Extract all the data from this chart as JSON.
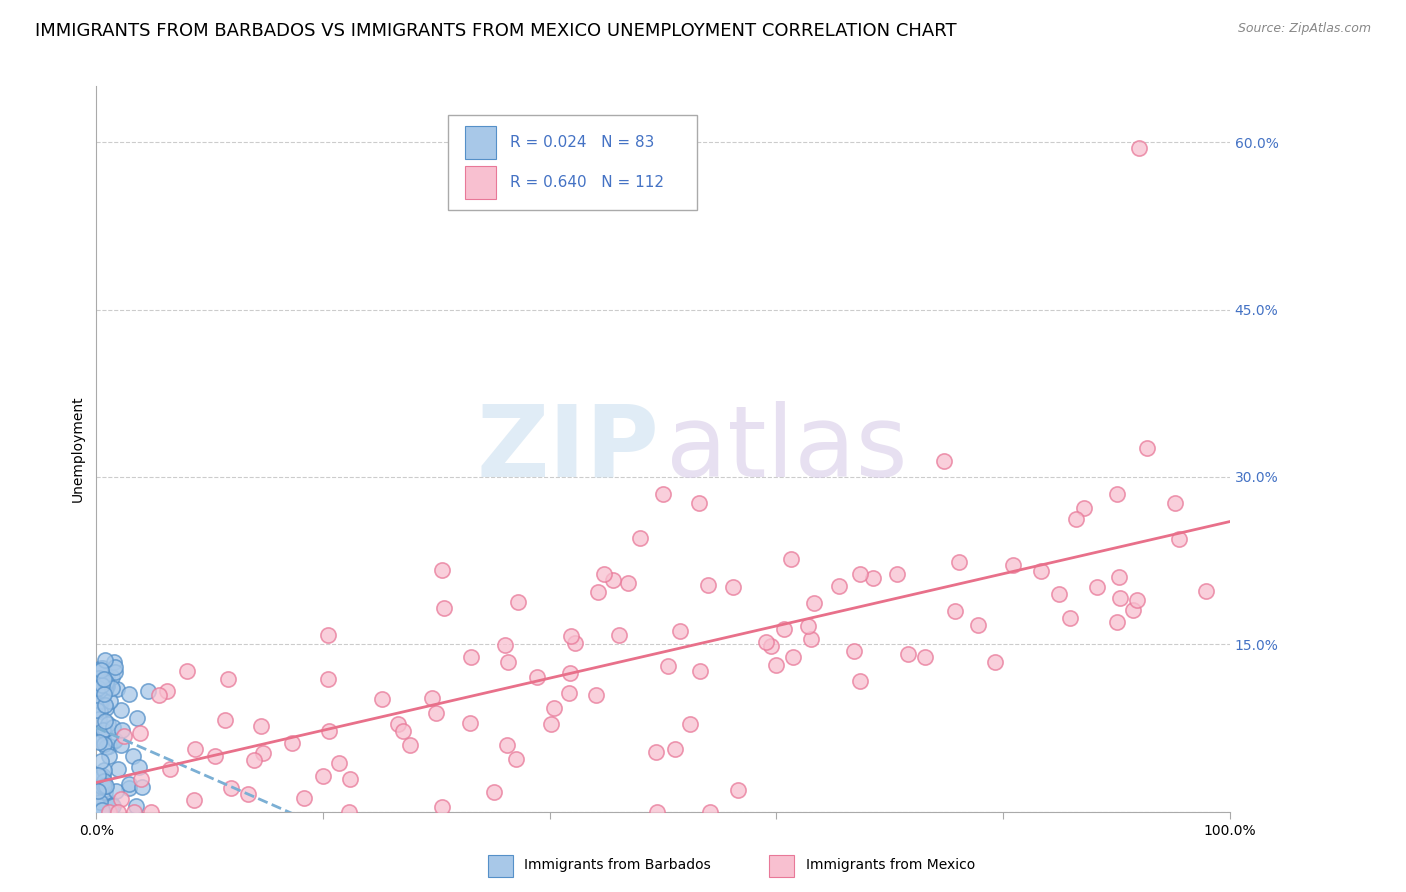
{
  "title": "IMMIGRANTS FROM BARBADOS VS IMMIGRANTS FROM MEXICO UNEMPLOYMENT CORRELATION CHART",
  "source": "Source: ZipAtlas.com",
  "ylabel": "Unemployment",
  "xlim": [
    0,
    1.0
  ],
  "ylim": [
    0,
    0.65
  ],
  "yticks": [
    0.0,
    0.15,
    0.3,
    0.45,
    0.6
  ],
  "ytick_labels": [
    "",
    "15.0%",
    "30.0%",
    "45.0%",
    "60.0%"
  ],
  "xticks": [
    0.0,
    0.2,
    0.4,
    0.6,
    0.8,
    1.0
  ],
  "xtick_labels": [
    "0.0%",
    "",
    "",
    "",
    "",
    "100.0%"
  ],
  "series_barbados": {
    "label": "Immigrants from Barbados",
    "color": "#a8c8e8",
    "edge_color": "#5590c8",
    "R": 0.024,
    "N": 83,
    "line_style": "--",
    "line_color": "#7bafd4"
  },
  "series_mexico": {
    "label": "Immigrants from Mexico",
    "color": "#f8c0d0",
    "edge_color": "#e87898",
    "R": 0.64,
    "N": 112,
    "line_style": "-",
    "line_color": "#e8708a"
  },
  "legend_text_color": "#4472c4",
  "grid_color": "#cccccc",
  "title_fontsize": 13,
  "tick_label_fontsize": 10,
  "source_fontsize": 9
}
